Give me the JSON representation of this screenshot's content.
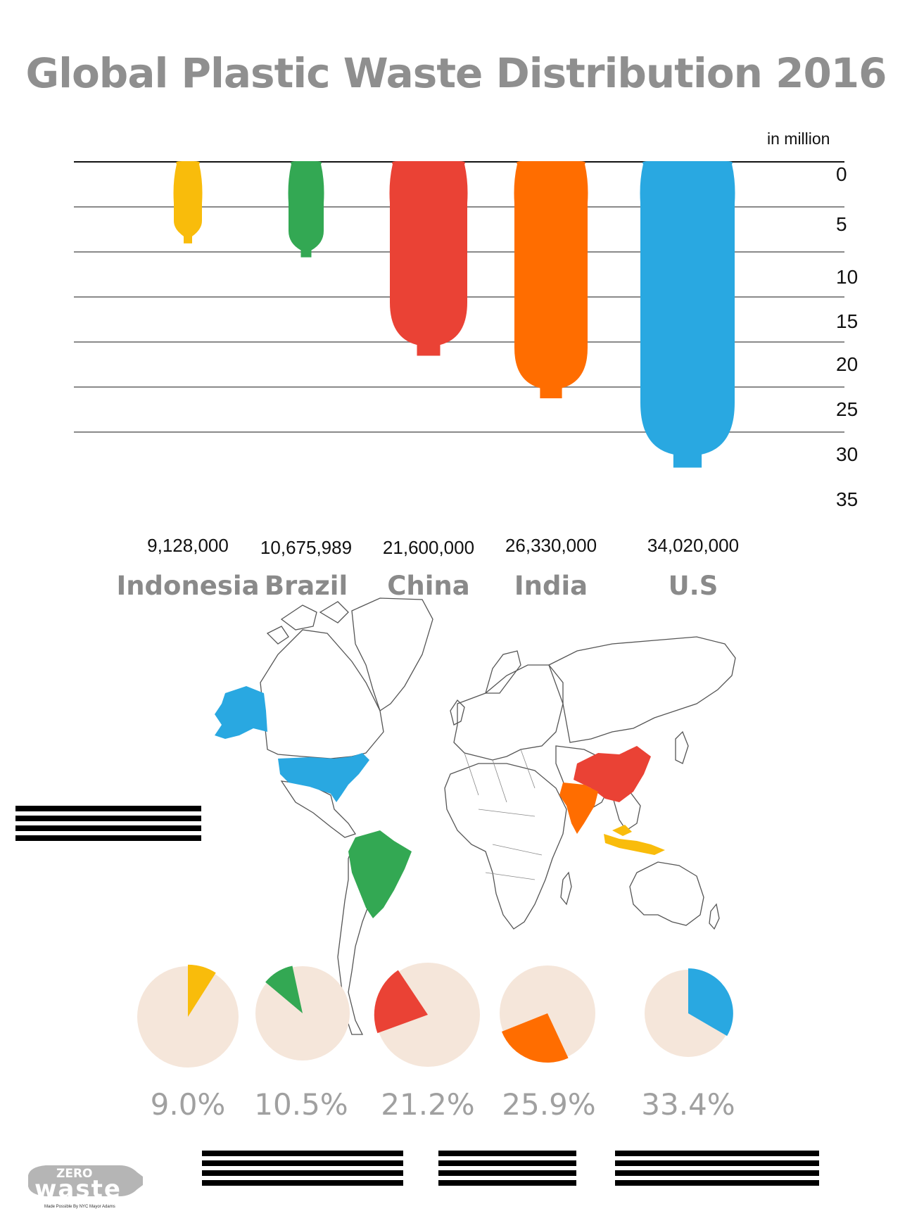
{
  "title": "Global Plastic Waste Distribution 2016",
  "chart_data": [
    {
      "type": "bar",
      "title": "Global Plastic Waste Distribution 2016",
      "unit_label": "in million",
      "categories": [
        "Indonesia",
        "Brazil",
        "China",
        "India",
        "U.S"
      ],
      "values": [
        9.128,
        10.675989,
        21.6,
        26.33,
        34.02
      ],
      "value_labels": [
        "9,128,000",
        "10,675,989",
        "21,600,000",
        "26,330,000",
        "34,020,000"
      ],
      "colors": [
        "#f9bc0b",
        "#33a853",
        "#ea4235",
        "#ff6d00",
        "#29a8e1"
      ],
      "y_ticks": [
        "0",
        "5",
        "10",
        "15",
        "20",
        "25",
        "30",
        "35"
      ],
      "ylim": [
        0,
        35
      ],
      "orientation": "inverted-vertical",
      "grid": true
    },
    {
      "type": "pie",
      "categories": [
        "Indonesia",
        "Brazil",
        "China",
        "India",
        "U.S"
      ],
      "values": [
        9.0,
        10.5,
        21.2,
        25.9,
        33.4
      ],
      "labels": [
        "9.0%",
        "10.5%",
        "21.2%",
        "25.9%",
        "33.4%"
      ],
      "colors": [
        "#f9bc0b",
        "#33a853",
        "#ea4235",
        "#ff6d00",
        "#29a8e1"
      ],
      "background_color": "#f5e6da"
    }
  ],
  "map": {
    "highlighted": [
      "Indonesia",
      "Brazil",
      "China",
      "India",
      "U.S"
    ]
  },
  "logo": {
    "line1": "ZERO",
    "line2": "waste",
    "credit": "Made Possible By NYC Mayor Adams"
  }
}
